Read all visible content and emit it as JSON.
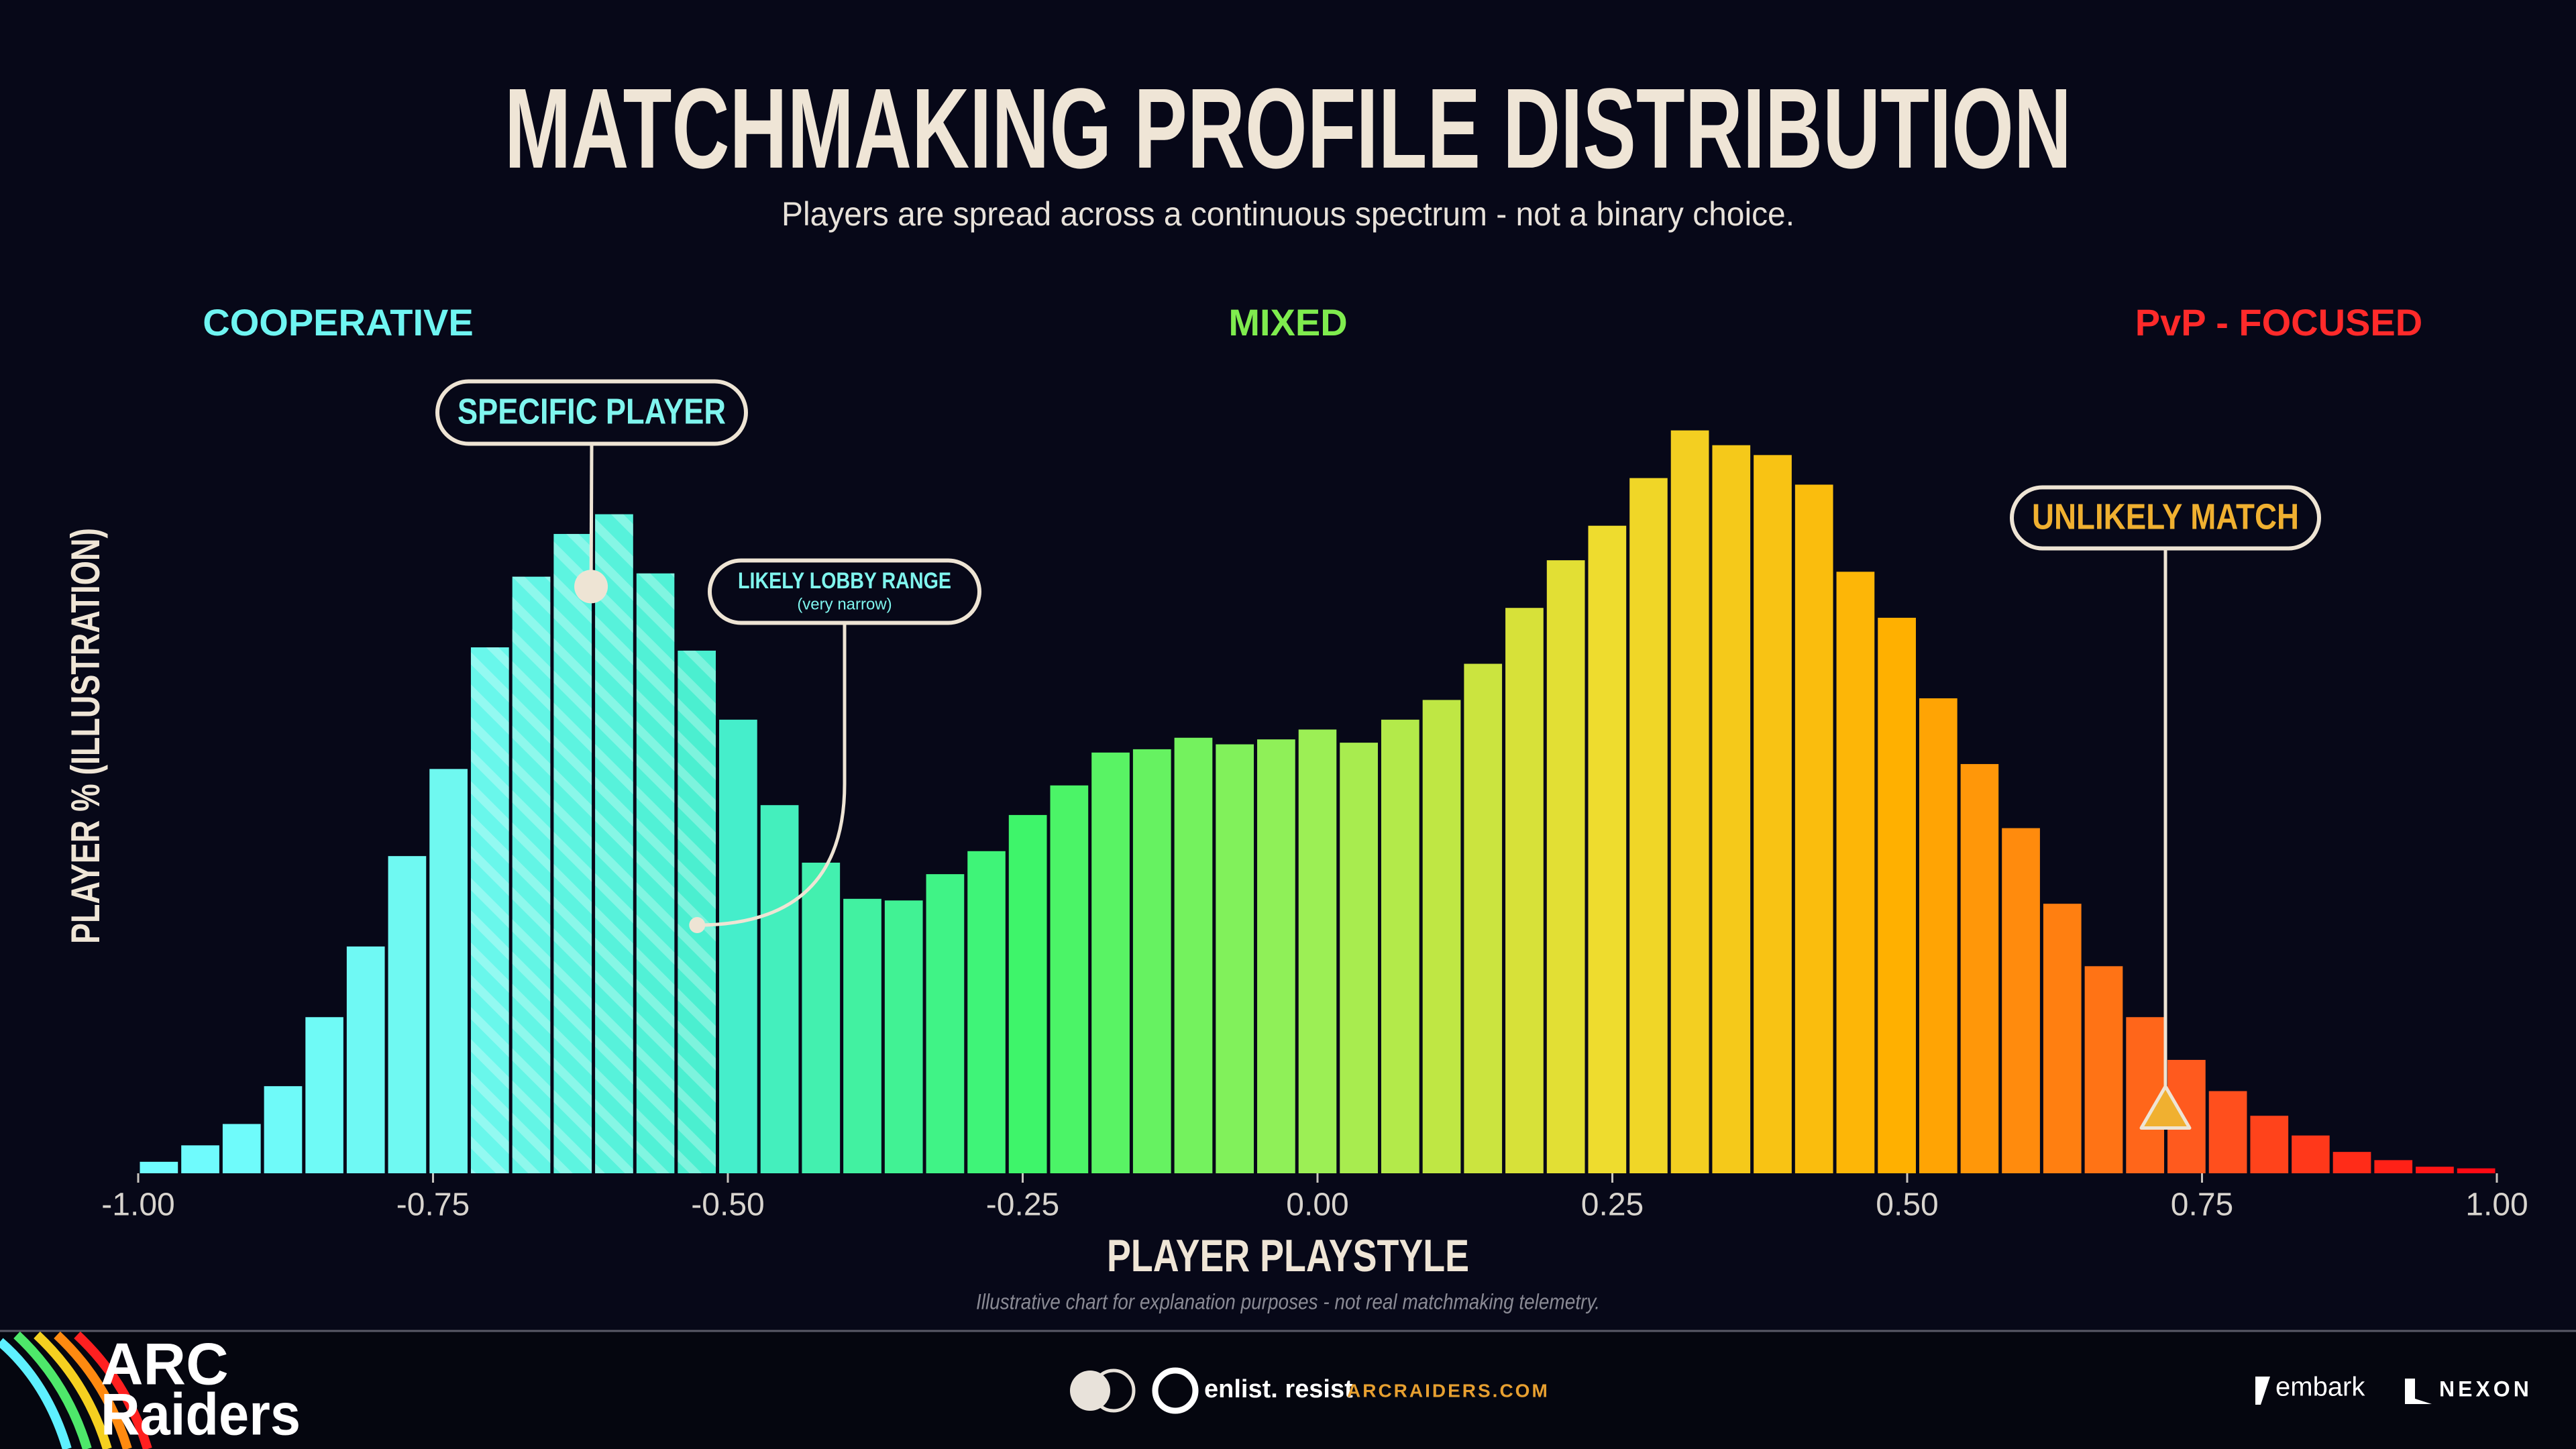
{
  "chart_data": {
    "type": "histogram",
    "title": "MATCHMAKING PROFILE DISTRIBUTION",
    "subtitle": "Players are spread across a continuous spectrum - not a binary choice.",
    "xlabel": "PLAYER PLAYSTYLE",
    "ylabel": "PLAYER % (ILLUSTRATION)",
    "note": "Illustrative chart for explanation purposes - not real matchmaking telemetry.",
    "region_labels": [
      {
        "label": "COOPERATIVE",
        "color": "#6ff5f2"
      },
      {
        "label": "MIXED",
        "color": "#7fec4e"
      },
      {
        "label": "PvP - FOCUSED",
        "color": "#ff2a2a"
      }
    ],
    "bins": [
      -1,
      -0.9649,
      -0.9298,
      -0.8947,
      -0.8596,
      -0.8246,
      -0.7895,
      -0.7544,
      -0.7193,
      -0.6842,
      -0.6491,
      -0.614,
      -0.5789,
      -0.5439,
      -0.5088,
      -0.4737,
      -0.4386,
      -0.4035,
      -0.3684,
      -0.3333,
      -0.2982,
      -0.2632,
      -0.2281,
      -0.193,
      -0.1579,
      -0.1228,
      -0.0877,
      -0.0526,
      -0.0175,
      0.0175,
      0.0526,
      0.0877,
      0.1228,
      0.1579,
      0.193,
      0.2281,
      0.2632,
      0.2982,
      0.3333,
      0.3684,
      0.4035,
      0.4386,
      0.4737,
      0.5088,
      0.5439,
      0.5789,
      0.614,
      0.6491,
      0.6842,
      0.7193,
      0.7544,
      0.7895,
      0.8246,
      0.8596,
      0.8947,
      0.9298,
      0.9649,
      1
    ],
    "values": [
      7,
      17,
      30,
      53,
      95,
      138,
      193,
      246,
      320,
      363,
      389,
      401,
      365,
      318,
      276,
      224,
      189,
      167,
      166,
      182,
      196,
      218,
      236,
      256,
      258,
      265,
      261,
      264,
      270,
      262,
      276,
      288,
      310,
      344,
      373,
      394,
      423,
      452,
      443,
      437,
      419,
      366,
      338,
      289,
      249,
      210,
      164,
      126,
      95,
      69,
      50,
      35,
      23,
      13,
      8,
      4,
      3
    ],
    "colors": [
      "#6ffcff",
      "#6ff8f0",
      "#45eecb",
      "#3ef56a",
      "#9cef55",
      "#eedc2e",
      "#ffb000",
      "#ff5a1e",
      "#ff0a14"
    ],
    "xlim": [
      -1,
      1
    ],
    "ylim": [
      0,
      460
    ],
    "xticks": [
      {
        "value": -1,
        "label": "-1.00"
      },
      {
        "value": -0.75,
        "label": "-0.75"
      },
      {
        "value": -0.5,
        "label": "-0.50"
      },
      {
        "value": -0.25,
        "label": "-0.25"
      },
      {
        "value": 0,
        "label": "0.00"
      },
      {
        "value": 0.25,
        "label": "0.25"
      },
      {
        "value": 0.5,
        "label": "0.50"
      },
      {
        "value": 0.75,
        "label": "0.75"
      },
      {
        "value": 1,
        "label": "1.00"
      }
    ],
    "annotations": [
      {
        "label": "SPECIFIC PLAYER",
        "x": -0.616,
        "y": 357,
        "marker": "circle",
        "color": "#7ff5ee"
      },
      {
        "label": "LIKELY LOBBY RANGE",
        "sublabel": "(very narrow)",
        "x": -0.526,
        "y": 151,
        "marker": "dot",
        "color": "#7ff5ee",
        "range": [
          -0.7193,
          -0.5088
        ]
      },
      {
        "label": "UNLIKELY MATCH",
        "x": 0.719,
        "y": 39,
        "marker": "triangle",
        "color": "#f0b030"
      }
    ]
  },
  "footer": {
    "logo": [
      "ARC",
      "Raiders"
    ],
    "tagline": "enlist. resist",
    "website": "ARCRAIDERS.COM",
    "publishers": [
      "embark",
      "NEXON"
    ]
  }
}
